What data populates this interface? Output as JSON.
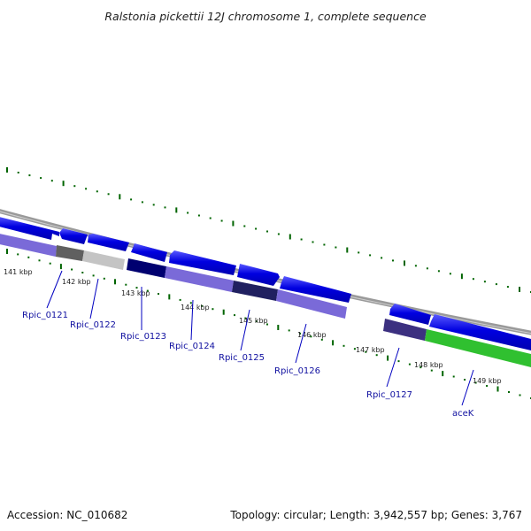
{
  "header": {
    "title": "Ralstonia pickettii 12J chromosome 1, complete sequence"
  },
  "footer": {
    "accession": "Accession: NC_010682",
    "summary": "Topology: circular; Length: 3,942,557 bp; Genes: 3,767"
  },
  "ticks": [
    {
      "label": "141 kbp"
    },
    {
      "label": "142 kbp"
    },
    {
      "label": "143 kbp"
    },
    {
      "label": "144 kbp"
    },
    {
      "label": "145 kbp"
    },
    {
      "label": "146 kbp"
    },
    {
      "label": "147 kbp"
    },
    {
      "label": "148 kbp"
    },
    {
      "label": "149 kbp"
    }
  ],
  "genes": [
    {
      "label": "Rpic_0121",
      "color": "#606060"
    },
    {
      "label": "Rpic_0122",
      "color": "#c0c0c0"
    },
    {
      "label": "Rpic_0123",
      "color": "#000070"
    },
    {
      "label": "Rpic_0124",
      "color": "#7060c8"
    },
    {
      "label": "Rpic_0125",
      "color": "#202060"
    },
    {
      "label": "Rpic_0126",
      "color": "#7060c8"
    },
    {
      "label": "Rpic_0127",
      "color": "#3c3080"
    },
    {
      "label": "aceK",
      "color": "#30c030"
    }
  ],
  "colors": {
    "forward_cds": "#0000e0",
    "reverse_cds_default": "#6a5acd",
    "backbone": "#8a8a8a",
    "tick": "#006400",
    "label_line": "#0000c0",
    "label_text": "#1010a0"
  }
}
